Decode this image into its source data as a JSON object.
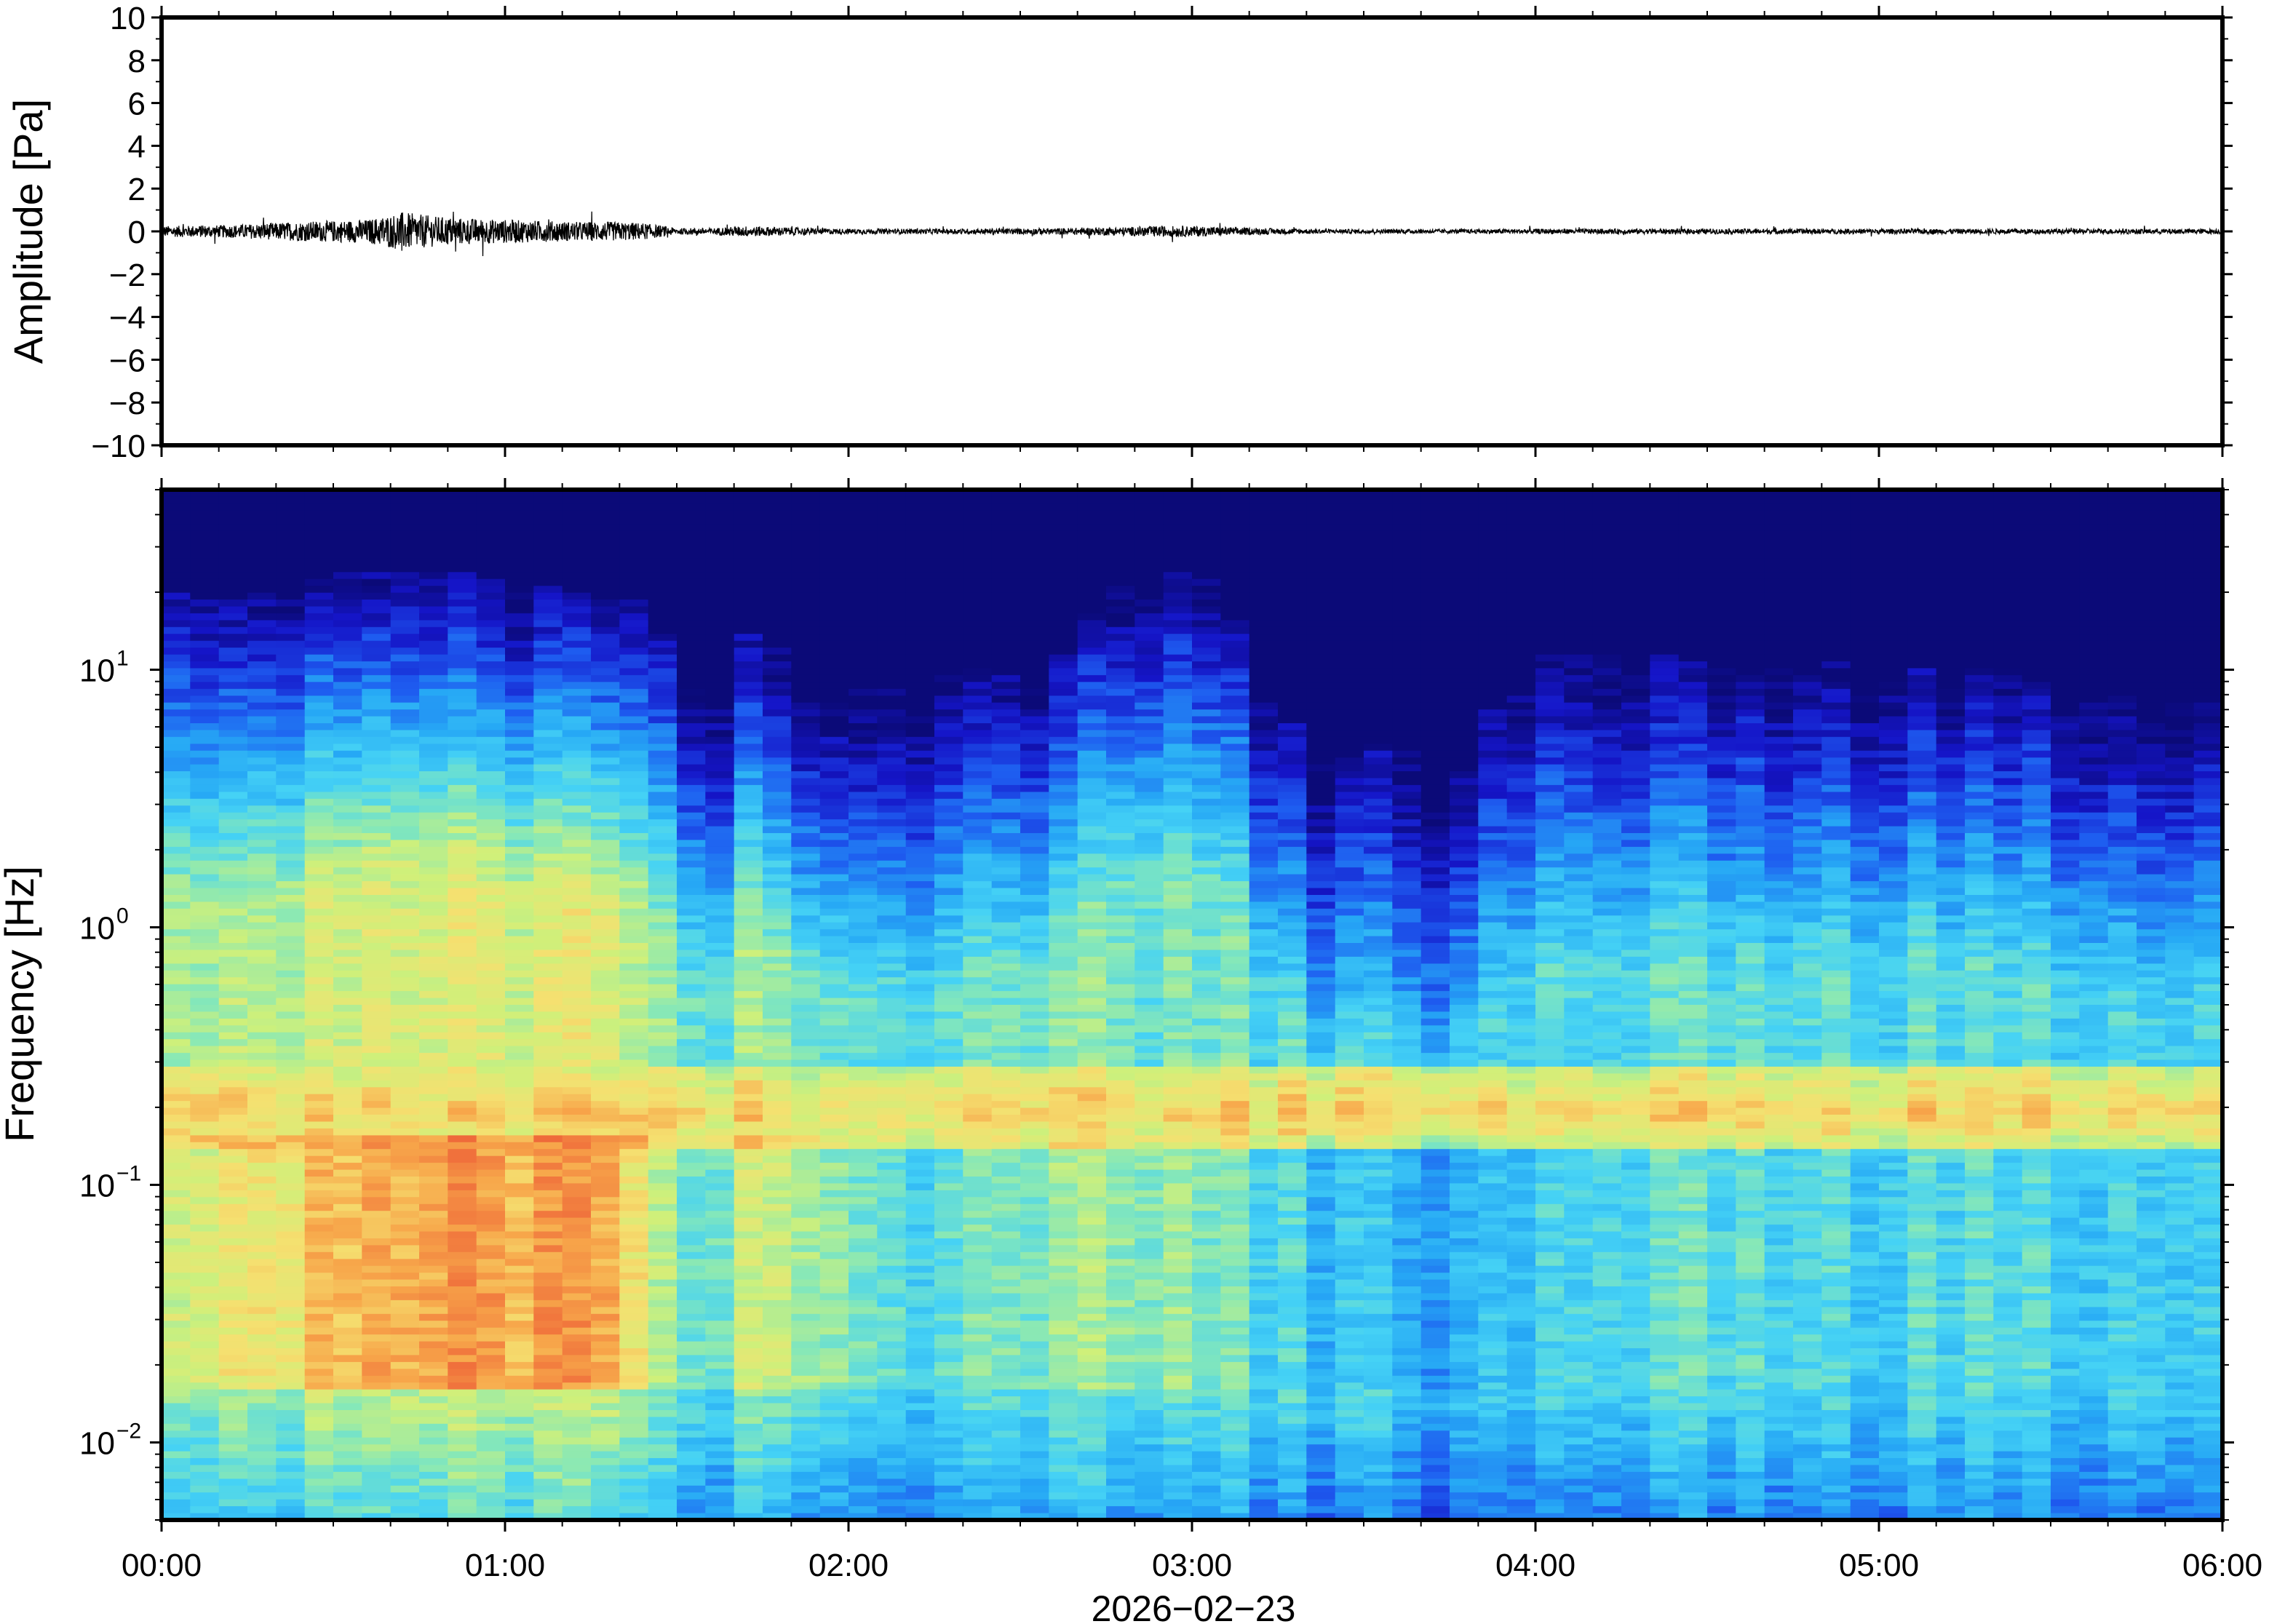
{
  "chart_data": [
    {
      "type": "line",
      "panel": "waveform",
      "ylabel": "Amplitude [Pa]",
      "ylim": [
        -10,
        10
      ],
      "yticks": [
        10,
        8,
        6,
        4,
        2,
        0,
        -2,
        -4,
        -6,
        -8,
        -10
      ],
      "ytick_labels": [
        "10",
        "8",
        "6",
        "4",
        "2",
        "0",
        "−2",
        "−4",
        "−6",
        "−8",
        "−10"
      ],
      "x_unit": "hours since 2026-02-23 00:00",
      "xlim": [
        0,
        6
      ],
      "envelope": {
        "x": [
          0.0,
          0.2,
          0.4,
          0.5,
          0.6,
          0.7,
          0.8,
          0.9,
          1.0,
          1.1,
          1.2,
          1.3,
          1.4,
          1.5,
          1.6,
          1.7,
          1.8,
          1.9,
          2.0,
          2.3,
          2.6,
          2.8,
          2.9,
          3.0,
          3.1,
          3.2,
          3.4,
          3.6,
          3.8,
          4.0,
          4.5,
          5.0,
          5.5,
          6.0
        ],
        "amplitude": [
          0.25,
          0.3,
          0.45,
          0.5,
          0.55,
          0.9,
          0.7,
          0.6,
          0.55,
          0.5,
          0.45,
          0.45,
          0.4,
          0.15,
          0.15,
          0.25,
          0.2,
          0.15,
          0.12,
          0.12,
          0.15,
          0.2,
          0.25,
          0.25,
          0.2,
          0.15,
          0.1,
          0.1,
          0.1,
          0.12,
          0.12,
          0.12,
          0.12,
          0.12
        ]
      }
    },
    {
      "type": "heatmap",
      "panel": "spectrogram",
      "ylabel": "Frequency [Hz]",
      "xlabel": "2026−02−23",
      "y_scale": "log",
      "ylim": [
        0.005,
        50
      ],
      "yticks": [
        0.01,
        0.1,
        1,
        10
      ],
      "ytick_labels": [
        {
          "base": "10",
          "exp": "−2"
        },
        {
          "base": "10",
          "exp": "−1"
        },
        {
          "base": "10",
          "exp": "0"
        },
        {
          "base": "10",
          "exp": "1"
        }
      ],
      "xticks": [
        0,
        1,
        2,
        3,
        4,
        5,
        6
      ],
      "xtick_labels": [
        "00:00",
        "01:00",
        "02:00",
        "03:00",
        "04:00",
        "05:00",
        "06:00"
      ],
      "xlim": [
        0,
        6
      ],
      "colormap": [
        "#0b0a78",
        "#1515c8",
        "#1e5cf0",
        "#26a8f5",
        "#45d2f5",
        "#86e8b8",
        "#cff07a",
        "#f5e070",
        "#f7a64a",
        "#ef6a3a"
      ],
      "upper_limit_hz": {
        "x": [
          0.0,
          0.2,
          0.4,
          0.6,
          0.8,
          1.0,
          1.2,
          1.4,
          1.45,
          1.5,
          1.6,
          1.7,
          1.8,
          1.9,
          2.0,
          2.2,
          2.4,
          2.6,
          2.7,
          2.8,
          2.9,
          3.0,
          3.1,
          3.2,
          3.3,
          3.4,
          3.5,
          3.6,
          3.7,
          3.8,
          3.9,
          4.0,
          4.2,
          4.4,
          4.6,
          4.8,
          5.0,
          5.2,
          5.4,
          5.6,
          5.8,
          6.0
        ],
        "hz": [
          20,
          18,
          22,
          24,
          25,
          22,
          20,
          18,
          15,
          10,
          8,
          14,
          12,
          9,
          9,
          9,
          10,
          10,
          16,
          22,
          26,
          25,
          18,
          10,
          6,
          4,
          5,
          5,
          4,
          5,
          9,
          11,
          12,
          11,
          10,
          11,
          11,
          10,
          10,
          9,
          7,
          8
        ]
      },
      "microbaram_band_hz": [
        0.15,
        0.25
      ],
      "energy_by_hour": [
        {
          "x": 0.0,
          "level": 0.55
        },
        {
          "x": 0.5,
          "level": 0.75
        },
        {
          "x": 0.9,
          "level": 0.82
        },
        {
          "x": 1.3,
          "level": 0.78
        },
        {
          "x": 1.5,
          "level": 0.45
        },
        {
          "x": 1.8,
          "level": 0.62
        },
        {
          "x": 2.2,
          "level": 0.45
        },
        {
          "x": 2.9,
          "level": 0.55
        },
        {
          "x": 3.4,
          "level": 0.35
        },
        {
          "x": 3.7,
          "level": 0.32
        },
        {
          "x": 4.2,
          "level": 0.45
        },
        {
          "x": 5.0,
          "level": 0.42
        },
        {
          "x": 6.0,
          "level": 0.4
        }
      ]
    }
  ]
}
